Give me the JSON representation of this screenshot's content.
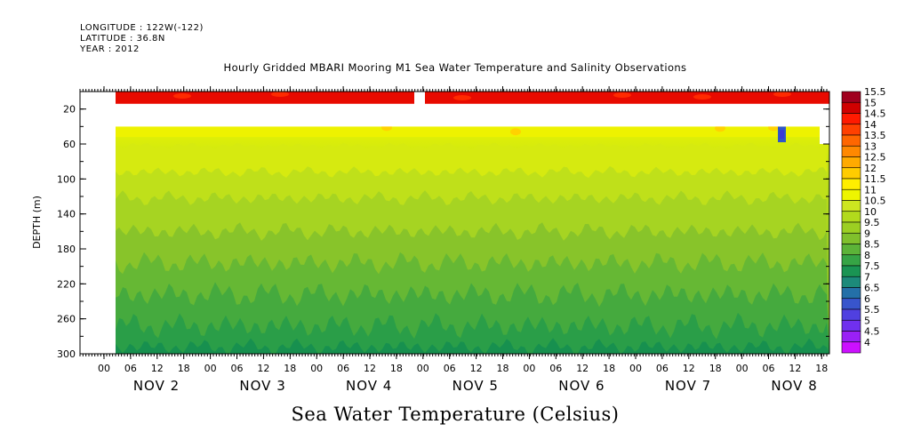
{
  "header": {
    "longitude": "LONGITUDE : 122W(-122)",
    "latitude": "LATITUDE : 36.8N",
    "year": "YEAR : 2012"
  },
  "chart_data": {
    "type": "heatmap",
    "title": "Hourly Gridded MBARI Mooring M1 Sea Water Temperature and Salinity Observations",
    "xlabel": "Sea Water Temperature (Celsius)",
    "ylabel": "DEPTH (m)",
    "ylim": [
      300,
      0
    ],
    "y_ticks": [
      "20",
      "60",
      "100",
      "140",
      "180",
      "220",
      "260",
      "300"
    ],
    "x_hour_ticks": [
      "00",
      "06",
      "12",
      "18",
      "00",
      "06",
      "12",
      "18",
      "00",
      "06",
      "12",
      "18",
      "00",
      "06",
      "12",
      "18",
      "00",
      "06",
      "12",
      "18",
      "00",
      "06",
      "12",
      "18",
      "00",
      "06",
      "12",
      "18"
    ],
    "x_day_labels": [
      "NOV 2",
      "NOV 3",
      "NOV 4",
      "NOV 5",
      "NOV 6",
      "NOV 7",
      "NOV 8"
    ],
    "color_levels": [
      "15.5",
      "15",
      "14.5",
      "14",
      "13.5",
      "13",
      "12.5",
      "12",
      "11.5",
      "11",
      "10.5",
      "10",
      "9.5",
      "9",
      "8.5",
      "8",
      "7.5",
      "7",
      "6.5",
      "6",
      "5.5",
      "5",
      "4.5",
      "4"
    ],
    "colors": [
      "#a0001e",
      "#d00000",
      "#ff1a00",
      "#ff4000",
      "#ff6600",
      "#ff8800",
      "#ffaa00",
      "#ffcc00",
      "#ffee00",
      "#eef500",
      "#cde620",
      "#b2da1c",
      "#9ccf22",
      "#80c02c",
      "#5cb338",
      "#36a445",
      "#1a9453",
      "#1c8a7a",
      "#2470a8",
      "#3855cc",
      "#5040e0",
      "#7030ee",
      "#9a20f6",
      "#cc10ff"
    ],
    "depth_profile": [
      {
        "depth": 10,
        "temperature": 15.0
      },
      {
        "depth": 40,
        "temperature": 11.7
      },
      {
        "depth": 60,
        "temperature": 11.2
      },
      {
        "depth": 100,
        "temperature": 10.4
      },
      {
        "depth": 140,
        "temperature": 9.8
      },
      {
        "depth": 180,
        "temperature": 9.1
      },
      {
        "depth": 220,
        "temperature": 8.8
      },
      {
        "depth": 260,
        "temperature": 8.6
      },
      {
        "depth": 300,
        "temperature": 8.4
      }
    ]
  }
}
